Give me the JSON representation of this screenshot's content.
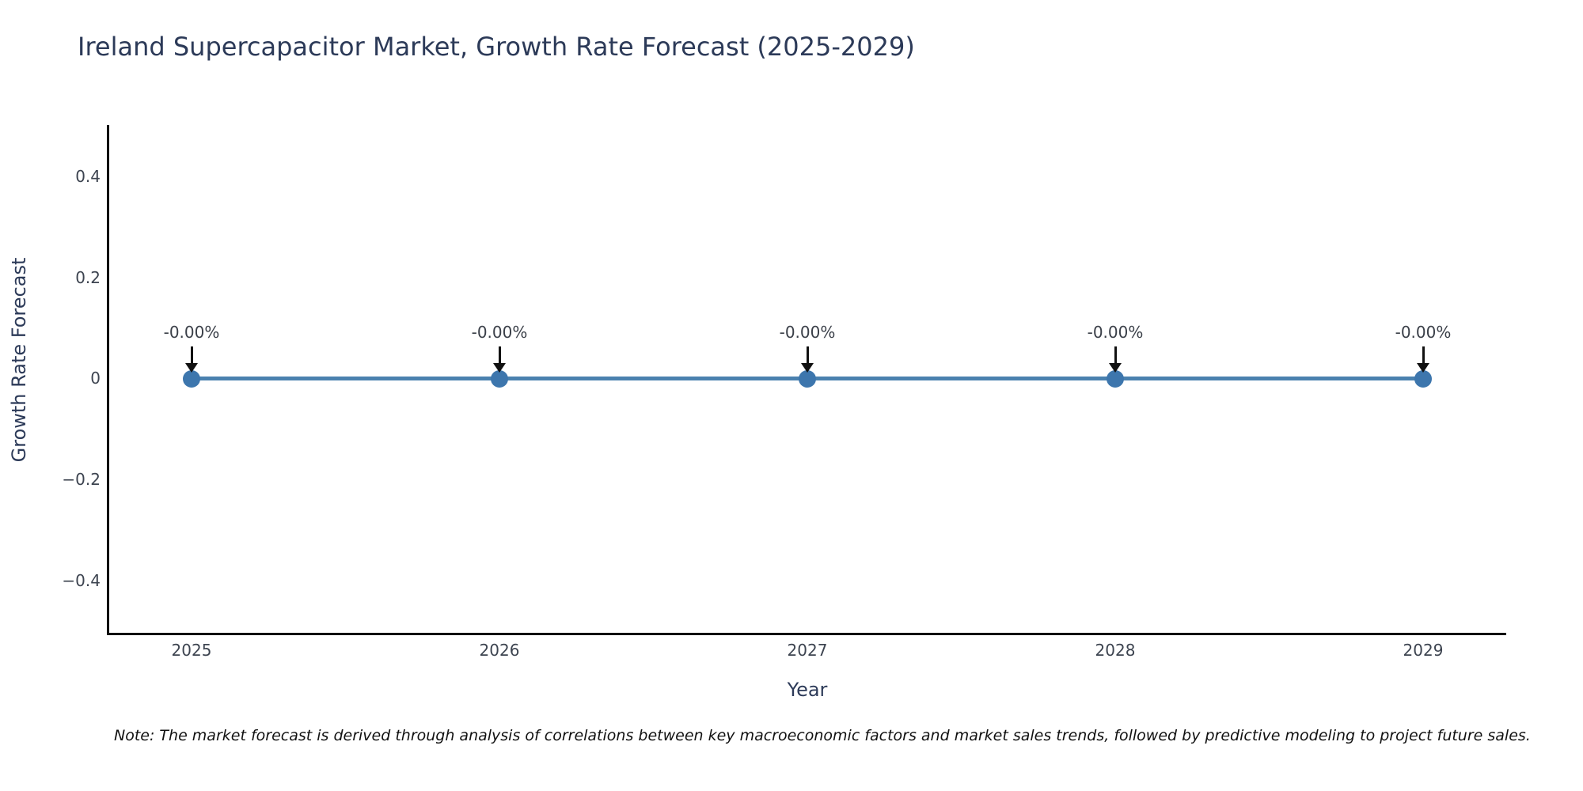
{
  "title": "Ireland Supercapacitor Market, Growth Rate Forecast (2025-2029)",
  "note": "Note: The market forecast is derived through analysis of correlations between key macroeconomic factors and market sales trends, followed by predictive modeling to project future sales.",
  "chart_data": {
    "type": "line",
    "title": "Ireland Supercapacitor Market, Growth Rate Forecast (2025-2029)",
    "xlabel": "Year",
    "ylabel": "Growth Rate Forecast",
    "x": [
      2025,
      2026,
      2027,
      2028,
      2029
    ],
    "series": [
      {
        "name": "Growth Rate Forecast",
        "values": [
          0,
          0,
          0,
          0,
          0
        ]
      }
    ],
    "point_labels": [
      "-0.00%",
      "-0.00%",
      "-0.00%",
      "-0.00%",
      "-0.00%"
    ],
    "xtick_labels": [
      "2025",
      "2026",
      "2027",
      "2028",
      "2029"
    ],
    "ytick_labels": [
      "0.4",
      "0.2",
      "0",
      "−0.2",
      "−0.4"
    ],
    "ylim": [
      -0.5,
      0.5
    ],
    "grid": false,
    "legend_position": "none",
    "line_color": "#4a81af",
    "marker_color": "#3d76ad",
    "annotation_arrow_color": "#111111",
    "text_color": "#2c3a58"
  }
}
